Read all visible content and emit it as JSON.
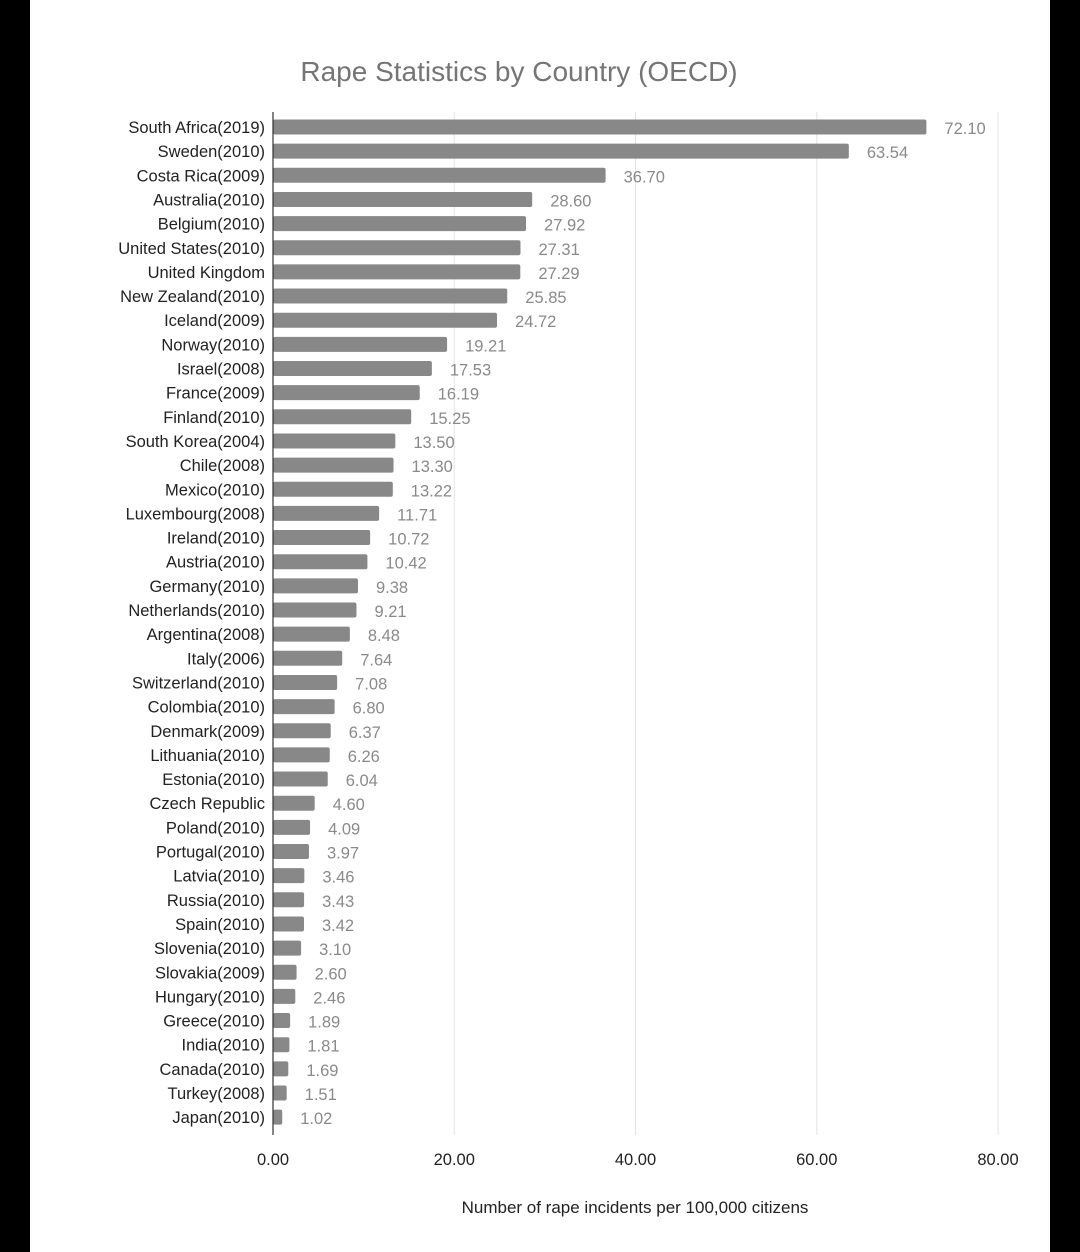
{
  "chart_data": {
    "type": "bar",
    "orientation": "horizontal",
    "title": "Rape Statistics by Country (OECD)",
    "xlabel": "Number of rape incidents per 100,000 citizens",
    "ylabel": "",
    "xlim": [
      0,
      80
    ],
    "xticks": [
      "0.00",
      "20.00",
      "40.00",
      "60.00",
      "80.00"
    ],
    "grid": true,
    "bar_color": "#888888",
    "categories": [
      "South Africa(2019)",
      "Sweden(2010)",
      "Costa Rica(2009)",
      "Australia(2010)",
      "Belgium(2010)",
      "United States(2010)",
      "United Kingdom",
      "New Zealand(2010)",
      "Iceland(2009)",
      "Norway(2010)",
      "Israel(2008)",
      "France(2009)",
      "Finland(2010)",
      "South Korea(2004)",
      "Chile(2008)",
      "Mexico(2010)",
      "Luxembourg(2008)",
      "Ireland(2010)",
      "Austria(2010)",
      "Germany(2010)",
      "Netherlands(2010)",
      "Argentina(2008)",
      "Italy(2006)",
      "Switzerland(2010)",
      "Colombia(2010)",
      "Denmark(2009)",
      "Lithuania(2010)",
      "Estonia(2010)",
      "Czech Republic",
      "Poland(2010)",
      "Portugal(2010)",
      "Latvia(2010)",
      "Russia(2010)",
      "Spain(2010)",
      "Slovenia(2010)",
      "Slovakia(2009)",
      "Hungary(2010)",
      "Greece(2010)",
      "India(2010)",
      "Canada(2010)",
      "Turkey(2008)",
      "Japan(2010)"
    ],
    "values": [
      72.1,
      63.54,
      36.7,
      28.6,
      27.92,
      27.31,
      27.29,
      25.85,
      24.72,
      19.21,
      17.53,
      16.19,
      15.25,
      13.5,
      13.3,
      13.22,
      11.71,
      10.72,
      10.42,
      9.38,
      9.21,
      8.48,
      7.64,
      7.08,
      6.8,
      6.37,
      6.26,
      6.04,
      4.6,
      4.09,
      3.97,
      3.46,
      3.43,
      3.42,
      3.1,
      2.6,
      2.46,
      1.89,
      1.81,
      1.69,
      1.51,
      1.02
    ],
    "value_labels": [
      "72.10",
      "63.54",
      "36.70",
      "28.60",
      "27.92",
      "27.31",
      "27.29",
      "25.85",
      "24.72",
      "19.21",
      "17.53",
      "16.19",
      "15.25",
      "13.50",
      "13.30",
      "13.22",
      "11.71",
      "10.72",
      "10.42",
      "9.38",
      "9.21",
      "8.48",
      "7.64",
      "7.08",
      "6.80",
      "6.37",
      "6.26",
      "6.04",
      "4.60",
      "4.09",
      "3.97",
      "3.46",
      "3.43",
      "3.42",
      "3.10",
      "2.60",
      "2.46",
      "1.89",
      "1.81",
      "1.69",
      "1.51",
      "1.02"
    ]
  }
}
